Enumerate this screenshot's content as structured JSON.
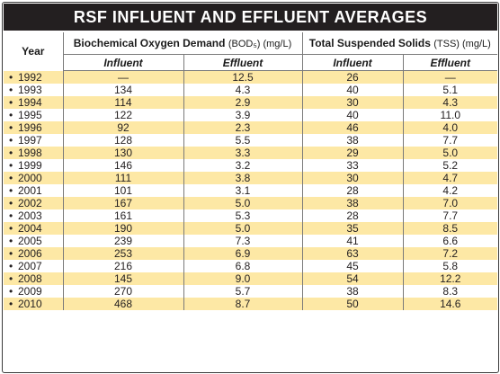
{
  "title": "RSF INFLUENT AND EFFLUENT AVERAGES",
  "header": {
    "year": "Year",
    "bod_label": "Biochemical Oxygen Demand",
    "bod_unit": "(BOD₅) (mg/L)",
    "tss_label": "Total Suspended Solids",
    "tss_unit": "(TSS) (mg/L)",
    "influent": "Influent",
    "effluent": "Effluent"
  },
  "bullet": "•",
  "rows": [
    {
      "year": "1992",
      "bod_in": "—",
      "bod_eff": "12.5",
      "tss_in": "26",
      "tss_eff": "—"
    },
    {
      "year": "1993",
      "bod_in": "134",
      "bod_eff": "4.3",
      "tss_in": "40",
      "tss_eff": "5.1"
    },
    {
      "year": "1994",
      "bod_in": "114",
      "bod_eff": "2.9",
      "tss_in": "30",
      "tss_eff": "4.3"
    },
    {
      "year": "1995",
      "bod_in": "122",
      "bod_eff": "3.9",
      "tss_in": "40",
      "tss_eff": "11.0"
    },
    {
      "year": "1996",
      "bod_in": "92",
      "bod_eff": "2.3",
      "tss_in": "46",
      "tss_eff": "4.0"
    },
    {
      "year": "1997",
      "bod_in": "128",
      "bod_eff": "5.5",
      "tss_in": "38",
      "tss_eff": "7.7"
    },
    {
      "year": "1998",
      "bod_in": "130",
      "bod_eff": "3.3",
      "tss_in": "29",
      "tss_eff": "5.0"
    },
    {
      "year": "1999",
      "bod_in": "146",
      "bod_eff": "3.2",
      "tss_in": "33",
      "tss_eff": "5.2"
    },
    {
      "year": "2000",
      "bod_in": "111",
      "bod_eff": "3.8",
      "tss_in": "30",
      "tss_eff": "4.7"
    },
    {
      "year": "2001",
      "bod_in": "101",
      "bod_eff": "3.1",
      "tss_in": "28",
      "tss_eff": "4.2"
    },
    {
      "year": "2002",
      "bod_in": "167",
      "bod_eff": "5.0",
      "tss_in": "38",
      "tss_eff": "7.0"
    },
    {
      "year": "2003",
      "bod_in": "161",
      "bod_eff": "5.3",
      "tss_in": "28",
      "tss_eff": "7.7"
    },
    {
      "year": "2004",
      "bod_in": "190",
      "bod_eff": "5.0",
      "tss_in": "35",
      "tss_eff": "8.5"
    },
    {
      "year": "2005",
      "bod_in": "239",
      "bod_eff": "7.3",
      "tss_in": "41",
      "tss_eff": "6.6"
    },
    {
      "year": "2006",
      "bod_in": "253",
      "bod_eff": "6.9",
      "tss_in": "63",
      "tss_eff": "7.2"
    },
    {
      "year": "2007",
      "bod_in": "216",
      "bod_eff": "6.8",
      "tss_in": "45",
      "tss_eff": "5.8"
    },
    {
      "year": "2008",
      "bod_in": "145",
      "bod_eff": "9.0",
      "tss_in": "54",
      "tss_eff": "12.2"
    },
    {
      "year": "2009",
      "bod_in": "270",
      "bod_eff": "5.7",
      "tss_in": "38",
      "tss_eff": "8.3"
    },
    {
      "year": "2010",
      "bod_in": "468",
      "bod_eff": "8.7",
      "tss_in": "50",
      "tss_eff": "14.6"
    }
  ],
  "colors": {
    "title_bg": "#231f20",
    "title_text": "#ffffff",
    "row_shade": "#fde8a5",
    "rule": "#7a7a7a"
  }
}
